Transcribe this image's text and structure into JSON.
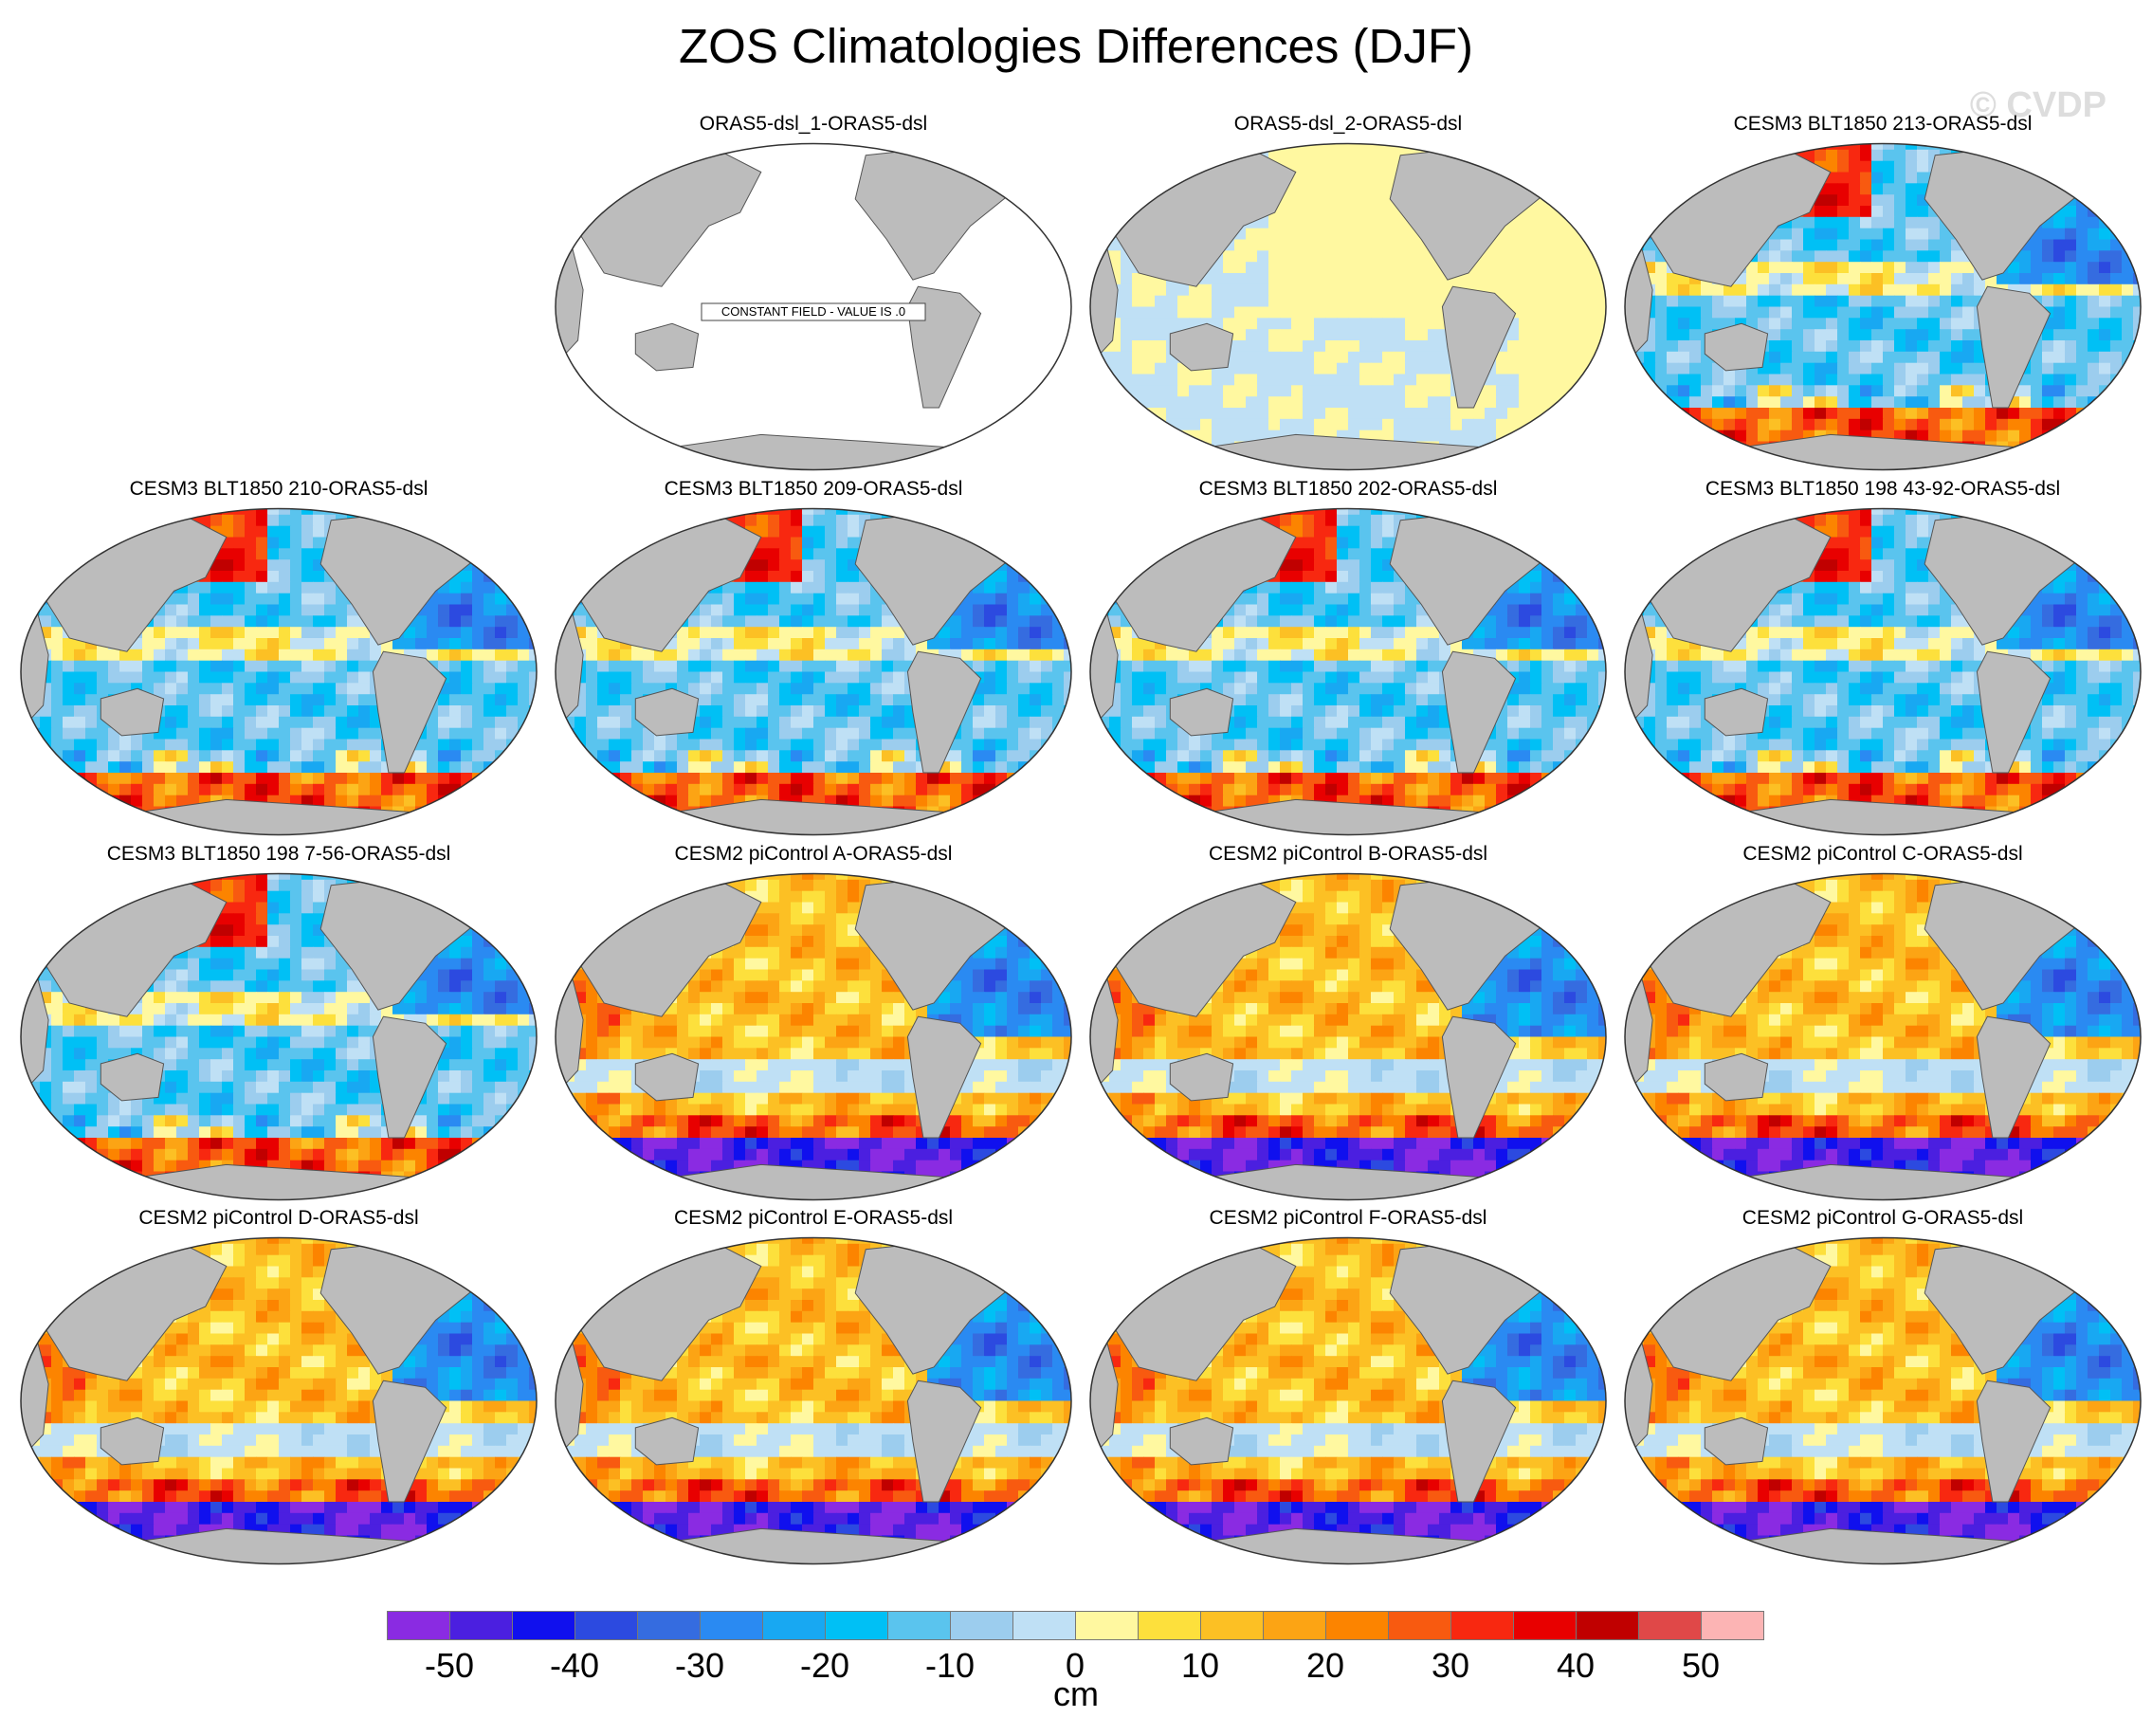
{
  "title": "ZOS Climatologies Differences (DJF)",
  "watermark": "© CVDP",
  "panels": [
    {
      "title": "ORAS5-dsl_1-ORAS5-dsl",
      "pattern": "constant",
      "note": "CONSTANT FIELD - VALUE IS .0"
    },
    {
      "title": "ORAS5-dsl_2-ORAS5-dsl",
      "pattern": "near-zero"
    },
    {
      "title": "CESM3 BLT1850 213-ORAS5-dsl",
      "pattern": "cesm3"
    },
    {
      "title": "CESM3 BLT1850 210-ORAS5-dsl",
      "pattern": "cesm3"
    },
    {
      "title": "CESM3 BLT1850 209-ORAS5-dsl",
      "pattern": "cesm3"
    },
    {
      "title": "CESM3 BLT1850 202-ORAS5-dsl",
      "pattern": "cesm3"
    },
    {
      "title": "CESM3 BLT1850 198 43-92-ORAS5-dsl",
      "pattern": "cesm3"
    },
    {
      "title": "CESM3 BLT1850 198 7-56-ORAS5-dsl",
      "pattern": "cesm3"
    },
    {
      "title": "CESM2 piControl A-ORAS5-dsl",
      "pattern": "cesm2"
    },
    {
      "title": "CESM2 piControl B-ORAS5-dsl",
      "pattern": "cesm2"
    },
    {
      "title": "CESM2 piControl C-ORAS5-dsl",
      "pattern": "cesm2"
    },
    {
      "title": "CESM2 piControl D-ORAS5-dsl",
      "pattern": "cesm2"
    },
    {
      "title": "CESM2 piControl E-ORAS5-dsl",
      "pattern": "cesm2"
    },
    {
      "title": "CESM2 piControl F-ORAS5-dsl",
      "pattern": "cesm2"
    },
    {
      "title": "CESM2 piControl G-ORAS5-dsl",
      "pattern": "cesm2"
    }
  ],
  "colorbar": {
    "unit": "cm",
    "tick_labels": [
      "-50",
      "-40",
      "-30",
      "-20",
      "-10",
      "0",
      "10",
      "20",
      "30",
      "40",
      "50"
    ],
    "colors": [
      "#8a2be2",
      "#4b1fe0",
      "#1010ee",
      "#2c4ae0",
      "#356ce0",
      "#2a8af2",
      "#18a8f2",
      "#00c0f5",
      "#5ac4ee",
      "#9ccdee",
      "#bfe0f5",
      "#fff8a0",
      "#fde03c",
      "#fcc024",
      "#fca414",
      "#fc8400",
      "#f85a10",
      "#f82810",
      "#e80000",
      "#c00000",
      "#e04848",
      "#fcb4b4"
    ]
  },
  "land_color": "#bcbcbc"
}
